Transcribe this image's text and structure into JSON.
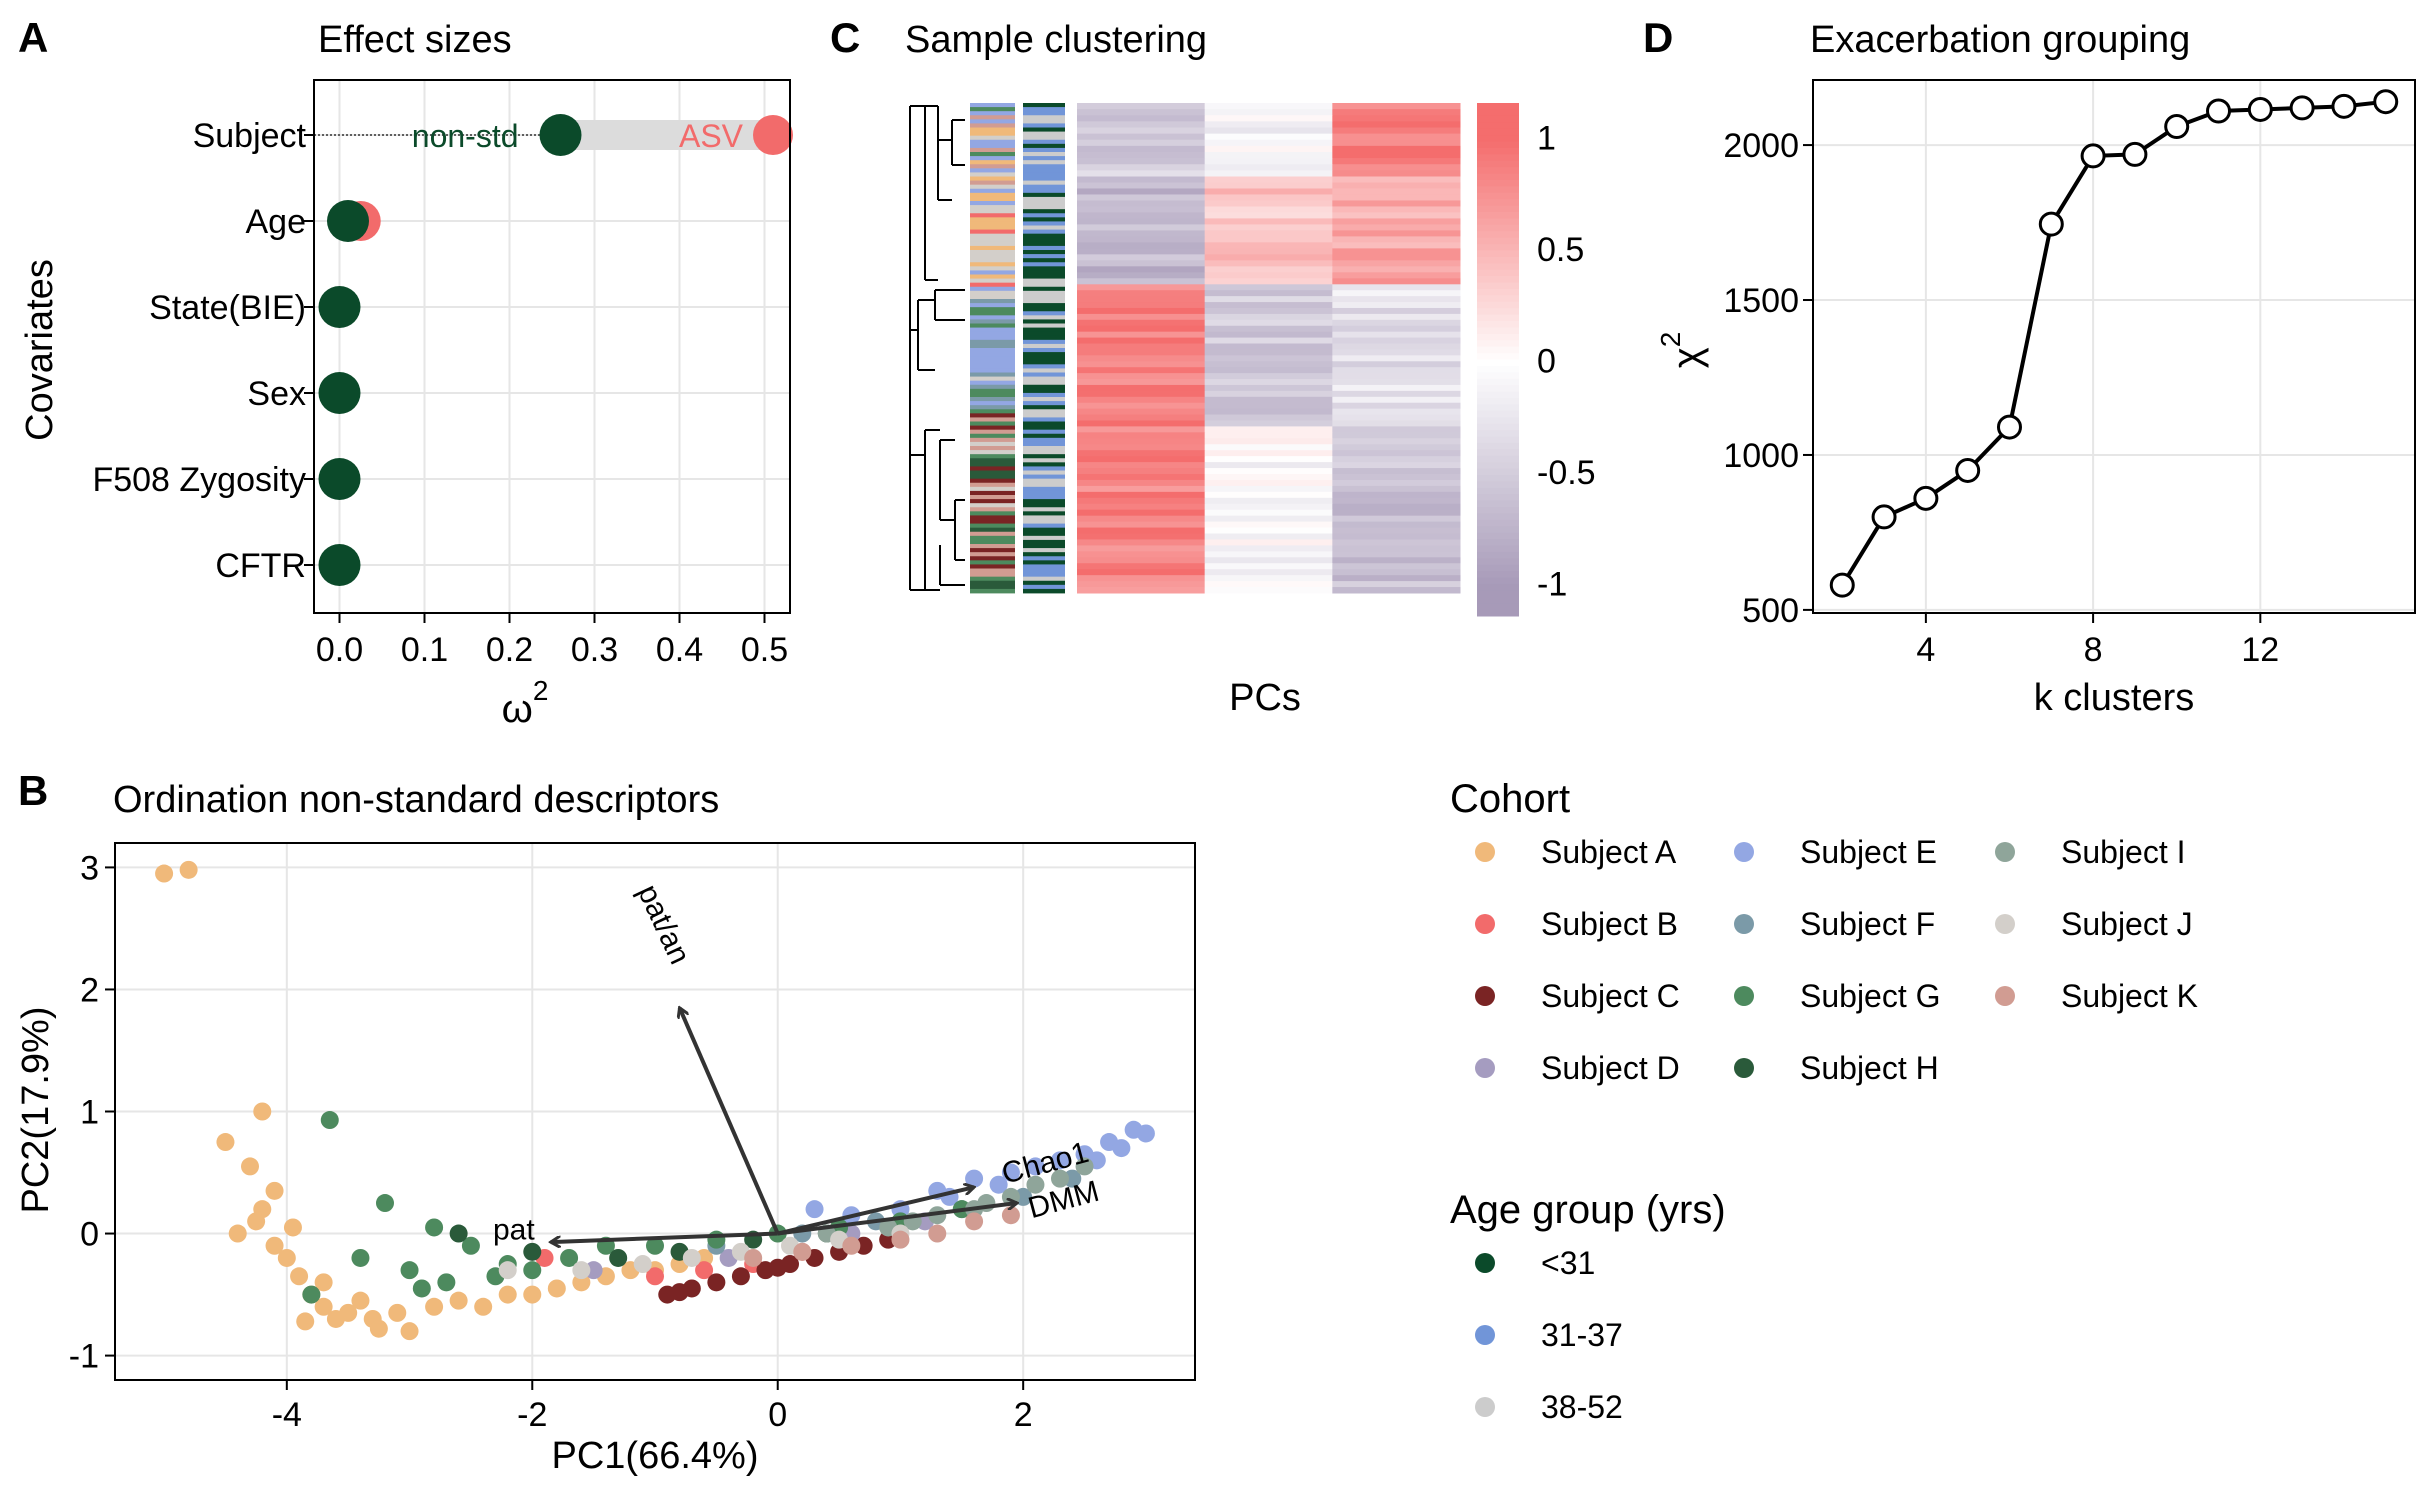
{
  "panel_labels": {
    "a": "A",
    "b": "B",
    "c": "C",
    "d": "D"
  },
  "colors": {
    "dark_green": "#0b4a2a",
    "salmon": "#f26b6b",
    "connector": "#dcdcdc",
    "heat_high": "#f46d6d",
    "heat_mid": "#ffffff",
    "heat_low": "#a79ab8",
    "grid": "#e6e6e6"
  },
  "chart_data": [
    {
      "id": "A",
      "type": "dot-lollipop",
      "title": "Effect sizes",
      "xlabel": "ω",
      "xlabel_sup": "2",
      "ylabel": "Covariates",
      "xlim": [
        -0.03,
        0.53
      ],
      "xticks": [
        0.0,
        0.1,
        0.2,
        0.3,
        0.4,
        0.5
      ],
      "xtick_labels": [
        "0.0",
        "0.1",
        "0.2",
        "0.3",
        "0.4",
        "0.5"
      ],
      "categories": [
        "Subject",
        "Age",
        "State(BIE)",
        "Sex",
        "F508 Zygosity",
        "CFTR"
      ],
      "series": [
        {
          "name": "non-std",
          "values": [
            0.26,
            0.01,
            0.0,
            0.0,
            0.0,
            0.0
          ]
        },
        {
          "name": "ASV",
          "values": [
            0.51,
            0.025,
            0.0,
            0.0,
            0.0,
            0.0
          ]
        }
      ],
      "annotations": [
        "non-std",
        "ASV"
      ]
    },
    {
      "id": "B",
      "type": "scatter",
      "title": "Ordination non-standard descriptors",
      "xlabel": "PC1(66.4%)",
      "ylabel": "PC2(17.9%)",
      "xlim": [
        -5.4,
        3.4
      ],
      "ylim": [
        -1.2,
        3.2
      ],
      "xticks": [
        -4,
        -2,
        0,
        2
      ],
      "yticks": [
        -1,
        0,
        1,
        2,
        3
      ],
      "xtick_labels": [
        "-4",
        "-2",
        "0",
        "2"
      ],
      "ytick_labels": [
        "-1",
        "0",
        "1",
        "2",
        "3"
      ],
      "series": [
        {
          "name": "Subject A",
          "color": "#f0b97a",
          "points": [
            [
              -5.0,
              2.95
            ],
            [
              -4.8,
              2.98
            ],
            [
              -4.2,
              1.0
            ],
            [
              -4.5,
              0.75
            ],
            [
              -4.3,
              0.55
            ],
            [
              -4.1,
              0.35
            ],
            [
              -4.2,
              0.2
            ],
            [
              -4.4,
              0.0
            ],
            [
              -4.1,
              -0.1
            ],
            [
              -4.0,
              -0.2
            ],
            [
              -3.9,
              -0.35
            ],
            [
              -3.8,
              -0.5
            ],
            [
              -3.7,
              -0.6
            ],
            [
              -3.6,
              -0.7
            ],
            [
              -3.5,
              -0.65
            ],
            [
              -3.3,
              -0.7
            ],
            [
              -3.1,
              -0.65
            ],
            [
              -3.0,
              -0.8
            ],
            [
              -2.8,
              -0.6
            ],
            [
              -2.6,
              -0.55
            ],
            [
              -2.4,
              -0.6
            ],
            [
              -2.2,
              -0.5
            ],
            [
              -2.0,
              -0.5
            ],
            [
              -1.8,
              -0.45
            ],
            [
              -1.6,
              -0.4
            ],
            [
              -1.4,
              -0.35
            ],
            [
              -1.2,
              -0.3
            ],
            [
              -1.0,
              -0.3
            ],
            [
              -0.8,
              -0.25
            ],
            [
              -0.6,
              -0.2
            ],
            [
              -3.7,
              -0.4
            ],
            [
              -3.4,
              -0.55
            ],
            [
              -3.95,
              0.05
            ],
            [
              -4.25,
              0.1
            ],
            [
              -3.85,
              -0.72
            ],
            [
              -3.25,
              -0.78
            ]
          ]
        },
        {
          "name": "Subject B",
          "color": "#f26b6b",
          "points": [
            [
              -1.9,
              -0.2
            ],
            [
              -1.0,
              -0.35
            ],
            [
              -0.6,
              -0.3
            ],
            [
              -0.2,
              -0.25
            ],
            [
              0.2,
              -0.15
            ]
          ]
        },
        {
          "name": "Subject C",
          "color": "#7a2424",
          "points": [
            [
              -0.9,
              -0.5
            ],
            [
              -0.7,
              -0.45
            ],
            [
              -0.5,
              -0.4
            ],
            [
              -0.3,
              -0.35
            ],
            [
              -0.1,
              -0.3
            ],
            [
              0.1,
              -0.25
            ],
            [
              0.3,
              -0.2
            ],
            [
              0.5,
              -0.15
            ],
            [
              0.7,
              -0.1
            ],
            [
              0.9,
              -0.05
            ],
            [
              -0.8,
              -0.48
            ],
            [
              0.0,
              -0.28
            ]
          ]
        },
        {
          "name": "Subject D",
          "color": "#a59cc0",
          "points": [
            [
              -1.5,
              -0.3
            ],
            [
              -0.4,
              -0.2
            ],
            [
              0.6,
              0.0
            ],
            [
              1.2,
              0.1
            ]
          ]
        },
        {
          "name": "Subject E",
          "color": "#93a7e3",
          "points": [
            [
              0.3,
              0.2
            ],
            [
              0.6,
              0.15
            ],
            [
              1.0,
              0.2
            ],
            [
              1.3,
              0.35
            ],
            [
              1.6,
              0.45
            ],
            [
              1.9,
              0.5
            ],
            [
              2.1,
              0.55
            ],
            [
              2.3,
              0.6
            ],
            [
              2.5,
              0.65
            ],
            [
              2.7,
              0.75
            ],
            [
              2.9,
              0.85
            ],
            [
              3.0,
              0.82
            ],
            [
              2.8,
              0.7
            ],
            [
              2.6,
              0.6
            ],
            [
              1.4,
              0.3
            ],
            [
              1.8,
              0.4
            ]
          ]
        },
        {
          "name": "Subject F",
          "color": "#7b9aa8",
          "points": [
            [
              -0.5,
              -0.1
            ],
            [
              0.2,
              0.0
            ],
            [
              0.8,
              0.1
            ],
            [
              1.5,
              0.2
            ],
            [
              2.0,
              0.3
            ],
            [
              2.4,
              0.45
            ]
          ]
        },
        {
          "name": "Subject G",
          "color": "#4d8a5e",
          "points": [
            [
              -3.65,
              0.93
            ],
            [
              -3.2,
              0.25
            ],
            [
              -2.8,
              0.05
            ],
            [
              -2.5,
              -0.1
            ],
            [
              -3.4,
              -0.2
            ],
            [
              -3.0,
              -0.3
            ],
            [
              -2.7,
              -0.4
            ],
            [
              -2.3,
              -0.35
            ],
            [
              -2.0,
              -0.3
            ],
            [
              -1.7,
              -0.2
            ],
            [
              -1.4,
              -0.1
            ],
            [
              -1.0,
              -0.1
            ],
            [
              -0.5,
              -0.05
            ],
            [
              0.0,
              0.0
            ],
            [
              0.5,
              0.05
            ],
            [
              1.0,
              0.1
            ],
            [
              1.5,
              0.2
            ],
            [
              -3.8,
              -0.5
            ],
            [
              -2.9,
              -0.45
            ],
            [
              -2.2,
              -0.25
            ]
          ]
        },
        {
          "name": "Subject H",
          "color": "#2a5a3a",
          "points": [
            [
              -2.6,
              0.0
            ],
            [
              -2.0,
              -0.15
            ],
            [
              -1.3,
              -0.2
            ],
            [
              -0.8,
              -0.15
            ],
            [
              -0.2,
              -0.05
            ],
            [
              0.4,
              0.0
            ]
          ]
        },
        {
          "name": "Subject I",
          "color": "#8fa59a",
          "points": [
            [
              0.4,
              0.0
            ],
            [
              0.9,
              0.05
            ],
            [
              1.3,
              0.15
            ],
            [
              1.6,
              0.2
            ],
            [
              1.9,
              0.3
            ],
            [
              2.1,
              0.4
            ],
            [
              2.3,
              0.45
            ],
            [
              2.5,
              0.55
            ],
            [
              1.1,
              0.1
            ],
            [
              1.7,
              0.25
            ]
          ]
        },
        {
          "name": "Subject J",
          "color": "#d3cfca",
          "points": [
            [
              -2.2,
              -0.3
            ],
            [
              -1.6,
              -0.3
            ],
            [
              -1.1,
              -0.25
            ],
            [
              -0.7,
              -0.2
            ],
            [
              -0.3,
              -0.15
            ],
            [
              0.1,
              -0.1
            ],
            [
              0.5,
              -0.05
            ],
            [
              1.0,
              0.0
            ]
          ]
        },
        {
          "name": "Subject K",
          "color": "#d19c92",
          "points": [
            [
              -0.2,
              -0.2
            ],
            [
              0.2,
              -0.15
            ],
            [
              0.6,
              -0.1
            ],
            [
              1.0,
              -0.05
            ],
            [
              1.3,
              0.0
            ],
            [
              1.6,
              0.1
            ],
            [
              1.9,
              0.15
            ]
          ]
        }
      ],
      "arrows": [
        {
          "label": "pat",
          "x": -1.85,
          "y": -0.07
        },
        {
          "label": "pat/an",
          "x": -0.8,
          "y": 1.85
        },
        {
          "label": "Chao1",
          "x": 1.6,
          "y": 0.38
        },
        {
          "label": "DMM",
          "x": 1.95,
          "y": 0.25
        }
      ]
    },
    {
      "id": "C",
      "type": "heatmap",
      "title": "Sample clustering",
      "xlabel": "PCs",
      "columns": 3,
      "colorbar_ticks": [
        1,
        0.5,
        0,
        -0.5,
        -1
      ],
      "colorbar_labels": [
        "1",
        "0.5",
        "0",
        "-0.5",
        "-1"
      ],
      "blocks": [
        {
          "rows": 0.15,
          "values": [
            -0.5,
            -0.1,
            0.9
          ]
        },
        {
          "rows": 0.22,
          "values": [
            -0.7,
            0.4,
            0.6
          ]
        },
        {
          "rows": 0.29,
          "values": [
            0.9,
            -0.5,
            -0.3
          ]
        },
        {
          "rows": 0.34,
          "values": [
            0.85,
            -0.05,
            -0.6
          ]
        }
      ]
    },
    {
      "id": "D",
      "type": "line",
      "title": "Exacerbation grouping",
      "xlabel": "k clusters",
      "ylabel": "χ",
      "ylabel_sup": "2",
      "xlim": [
        1.3,
        15.7
      ],
      "ylim": [
        490,
        2210
      ],
      "xticks": [
        4,
        8,
        12
      ],
      "yticks": [
        500,
        1000,
        1500,
        2000
      ],
      "xtick_labels": [
        "4",
        "8",
        "12"
      ],
      "ytick_labels": [
        "500",
        "1000",
        "1500",
        "2000"
      ],
      "x": [
        2,
        3,
        4,
        5,
        6,
        7,
        8,
        9,
        10,
        11,
        12,
        13,
        14,
        15
      ],
      "y": [
        580,
        800,
        860,
        950,
        1090,
        1745,
        1965,
        1970,
        2060,
        2110,
        2115,
        2120,
        2125,
        2140
      ]
    }
  ],
  "legend": {
    "cohort_title": "Cohort",
    "cohort_items": [
      {
        "label": "Subject A",
        "color": "#f0b97a"
      },
      {
        "label": "Subject B",
        "color": "#f26b6b"
      },
      {
        "label": "Subject C",
        "color": "#7a2424"
      },
      {
        "label": "Subject D",
        "color": "#a59cc0"
      },
      {
        "label": "Subject E",
        "color": "#93a7e3"
      },
      {
        "label": "Subject F",
        "color": "#7b9aa8"
      },
      {
        "label": "Subject G",
        "color": "#4d8a5e"
      },
      {
        "label": "Subject H",
        "color": "#2a5a3a"
      },
      {
        "label": "Subject I",
        "color": "#8fa59a"
      },
      {
        "label": "Subject J",
        "color": "#d3cfca"
      },
      {
        "label": "Subject K",
        "color": "#d19c92"
      }
    ],
    "age_title": "Age group (yrs)",
    "age_items": [
      {
        "label": "<31",
        "color": "#0b4a2a"
      },
      {
        "label": "31-37",
        "color": "#7195d8"
      },
      {
        "label": "38-52",
        "color": "#cccccc"
      }
    ]
  }
}
